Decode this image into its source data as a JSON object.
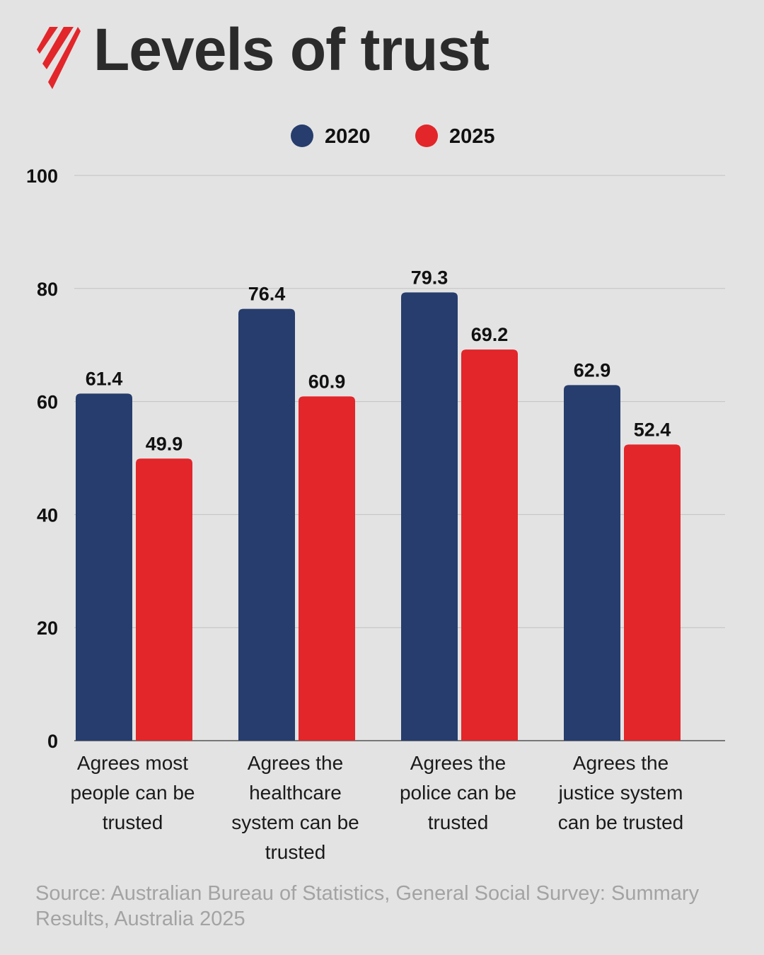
{
  "header": {
    "title": "Levels of trust",
    "logo_icon": "sbs-logo-icon",
    "logo_color": "#e2262a"
  },
  "source": "Source: Australian Bureau of Statistics, General Social Survey: Summary Results, Australia 2025",
  "chart_data": {
    "type": "bar",
    "title": "Levels of trust",
    "xlabel": "",
    "ylabel": "",
    "ylim": [
      0,
      100
    ],
    "yticks": [
      0,
      20,
      40,
      60,
      80,
      100
    ],
    "grid": true,
    "legend_position": "top-center",
    "categories": [
      [
        "Agrees most",
        "people can be",
        "trusted"
      ],
      [
        "Agrees the",
        "healthcare",
        "system can be",
        "trusted"
      ],
      [
        "Agrees the",
        "police can be",
        "trusted"
      ],
      [
        "Agrees the",
        "justice system",
        "can be trusted"
      ]
    ],
    "series": [
      {
        "name": "2020",
        "color": "#263d6d",
        "values": [
          61.4,
          76.4,
          79.3,
          62.9
        ]
      },
      {
        "name": "2025",
        "color": "#e2262a",
        "values": [
          49.9,
          60.9,
          69.2,
          52.4
        ]
      }
    ]
  }
}
